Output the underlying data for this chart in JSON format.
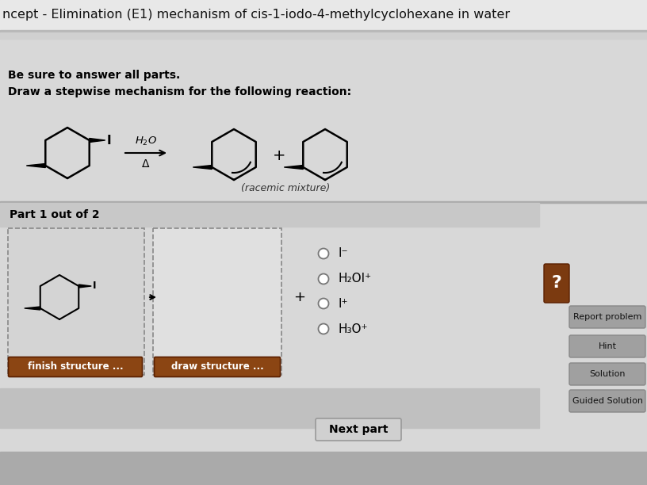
{
  "title": "ncept - Elimination (E1) mechanism of cis-1-iodo-4-methylcyclohexane in water",
  "title_fontsize": 11.5,
  "bg_top": "#e8e8e8",
  "bg_main": "#d8d8d8",
  "bg_separator": "#b8b8b8",
  "part_bar_bg": "#c8c8c8",
  "brown_btn": "#8B4513",
  "brown_question": "#7B3A10",
  "btn_gray": "#a0a0a0",
  "next_btn_color": "#d0d0d0",
  "radio_options": [
    "I⁻",
    "H₂OI⁺",
    "I⁺",
    "H₃O⁺"
  ],
  "be_sure_text": "Be sure to answer all parts.",
  "draw_text": "Draw a stepwise mechanism for the following reaction:",
  "racemic_text": "(racemic mixture)",
  "part_text": "Part 1 out of 2",
  "finish_btn": "finish structure ...",
  "draw_btn": "draw structure ...",
  "next_btn": "Next part",
  "right_btns": [
    "Report problem",
    "Hint",
    "Solution",
    "Guided Solution"
  ]
}
